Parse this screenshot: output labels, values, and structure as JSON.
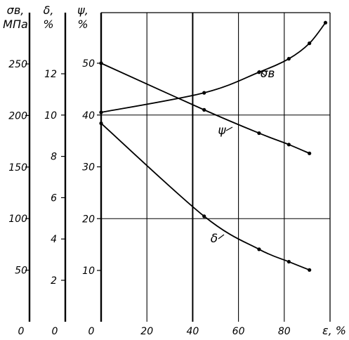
{
  "chart_data": {
    "type": "line",
    "x": {
      "label": "ε, %",
      "ticks": [
        "0",
        "20",
        "40",
        "60",
        "80"
      ],
      "tick_values": [
        0,
        20,
        40,
        60,
        80
      ],
      "range": [
        0,
        100
      ]
    },
    "axes": {
      "sigma": {
        "title_top": "σв,",
        "title_unit": "МПа",
        "zero": "0",
        "ticks": [
          "50",
          "100",
          "150",
          "200",
          "250"
        ],
        "tick_values": [
          50,
          100,
          150,
          200,
          250
        ],
        "range": [
          0,
          300
        ]
      },
      "delta": {
        "title_top": "δ,",
        "title_unit": "%",
        "zero": "0",
        "ticks": [
          "2",
          "4",
          "6",
          "8",
          "10",
          "12"
        ],
        "tick_values": [
          2,
          4,
          6,
          8,
          10,
          12
        ],
        "range": [
          0,
          14.9
        ]
      },
      "psi": {
        "title_top": "ψ,",
        "title_unit": "%",
        "zero": "0",
        "ticks": [
          "10",
          "20",
          "30",
          "40",
          "50"
        ],
        "tick_values": [
          10,
          20,
          30,
          40,
          50
        ],
        "range": [
          0,
          60
        ]
      }
    },
    "grid": {
      "vertical": [
        20,
        40,
        60,
        80
      ],
      "horizontal_psi": [
        20,
        40
      ]
    },
    "series": [
      {
        "name": "σв",
        "axis": "sigma",
        "x": [
          0,
          45,
          69,
          82,
          91,
          98
        ],
        "y": [
          203,
          222,
          242,
          255,
          270,
          290
        ]
      },
      {
        "name": "ψ",
        "axis": "psi",
        "x": [
          0,
          45,
          69,
          82,
          91
        ],
        "y": [
          50,
          41,
          36.5,
          34.3,
          32.6
        ]
      },
      {
        "name": "δ",
        "axis": "delta",
        "x": [
          0,
          45,
          69,
          82,
          91
        ],
        "y": [
          9.6,
          5.1,
          3.5,
          2.9,
          2.5
        ]
      }
    ]
  }
}
